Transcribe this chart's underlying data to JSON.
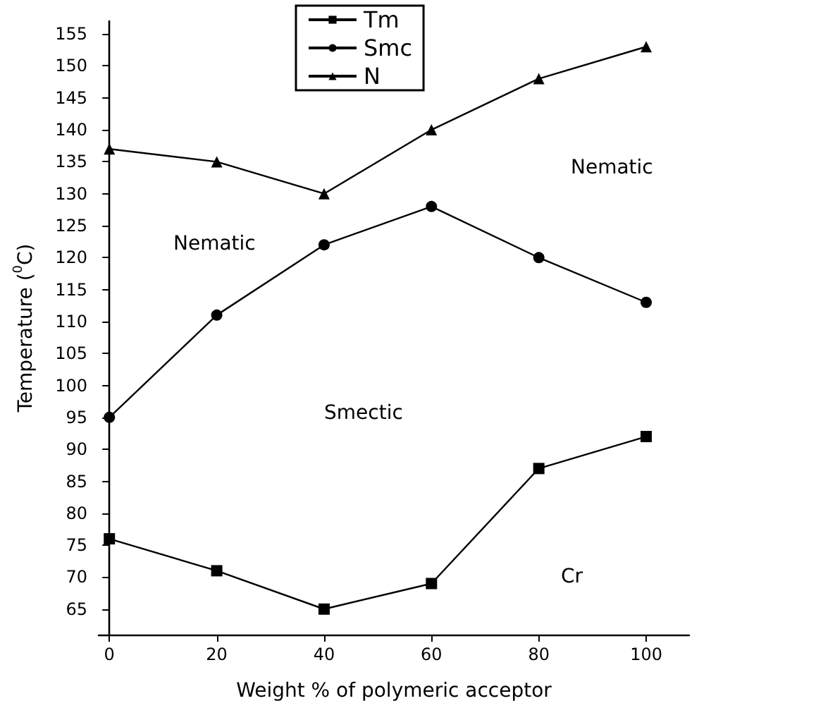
{
  "chart_data": {
    "type": "line",
    "xlabel": "Weight % of polymeric acceptor",
    "ylabel": "Temperature ($^{0}$C)",
    "x": [
      0,
      20,
      40,
      60,
      80,
      100
    ],
    "series": [
      {
        "name": "Tm",
        "color": "#000000",
        "marker": "square",
        "values": [
          76,
          71,
          65,
          69,
          87,
          92
        ]
      },
      {
        "name": "Smc",
        "color": "#000000",
        "marker": "circle",
        "values": [
          95,
          111,
          122,
          128,
          120,
          113
        ]
      },
      {
        "name": "N",
        "color": "#000000",
        "marker": "triangle",
        "values": [
          137,
          135,
          130,
          140,
          148,
          153
        ]
      }
    ],
    "xlim": [
      -2,
      108
    ],
    "xticks": [
      0,
      20,
      40,
      60,
      80,
      100
    ],
    "ylim": [
      61,
      157
    ],
    "yticks": [
      65,
      70,
      75,
      80,
      85,
      90,
      95,
      100,
      105,
      110,
      115,
      120,
      125,
      130,
      135,
      140,
      145,
      150,
      155
    ],
    "grid": false,
    "legend": "top",
    "line_style": "solid",
    "annotations": [
      "Nematic",
      "Nematic",
      "Smectic",
      "Cr"
    ]
  }
}
